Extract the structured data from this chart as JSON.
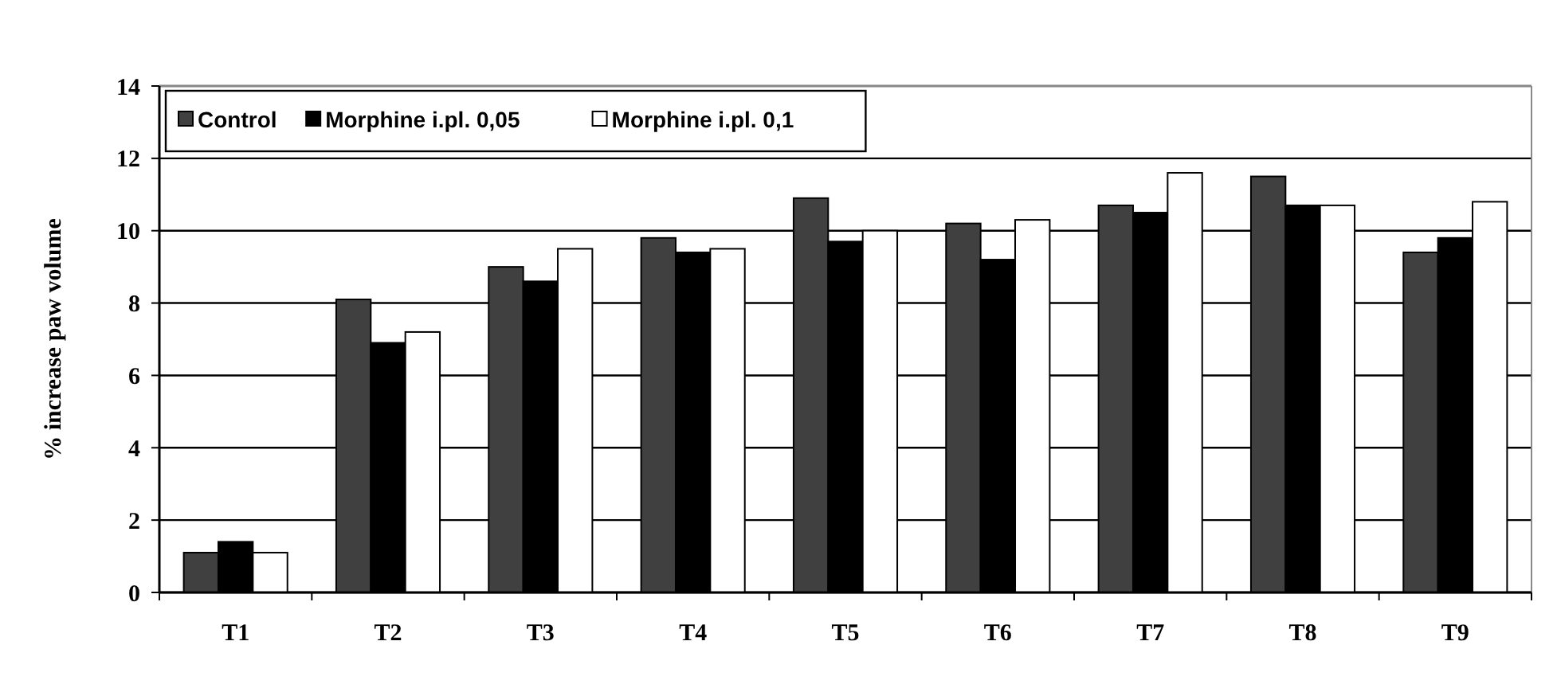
{
  "chart_data": {
    "type": "bar",
    "ylabel": "% increase paw volume",
    "categories": [
      "T1",
      "T2",
      "T3",
      "T4",
      "T5",
      "T6",
      "T7",
      "T8",
      "T9"
    ],
    "series": [
      {
        "name": "Control",
        "color": "#404040",
        "values": [
          1.1,
          8.1,
          9.0,
          9.8,
          10.9,
          10.2,
          10.7,
          11.5,
          9.4
        ]
      },
      {
        "name": "Morphine i.pl. 0,05",
        "color": "#000000",
        "values": [
          1.4,
          6.9,
          8.6,
          9.4,
          9.7,
          9.2,
          10.5,
          10.7,
          9.8
        ]
      },
      {
        "name": "Morphine i.pl. 0,1",
        "color": "#ffffff",
        "values": [
          1.1,
          7.2,
          9.5,
          9.5,
          10.0,
          10.3,
          11.6,
          10.7,
          10.8
        ]
      }
    ],
    "ylim": [
      0,
      14
    ],
    "yticks": [
      0,
      2,
      4,
      6,
      8,
      10,
      12,
      14
    ],
    "grid": "y",
    "legend": "top left"
  }
}
